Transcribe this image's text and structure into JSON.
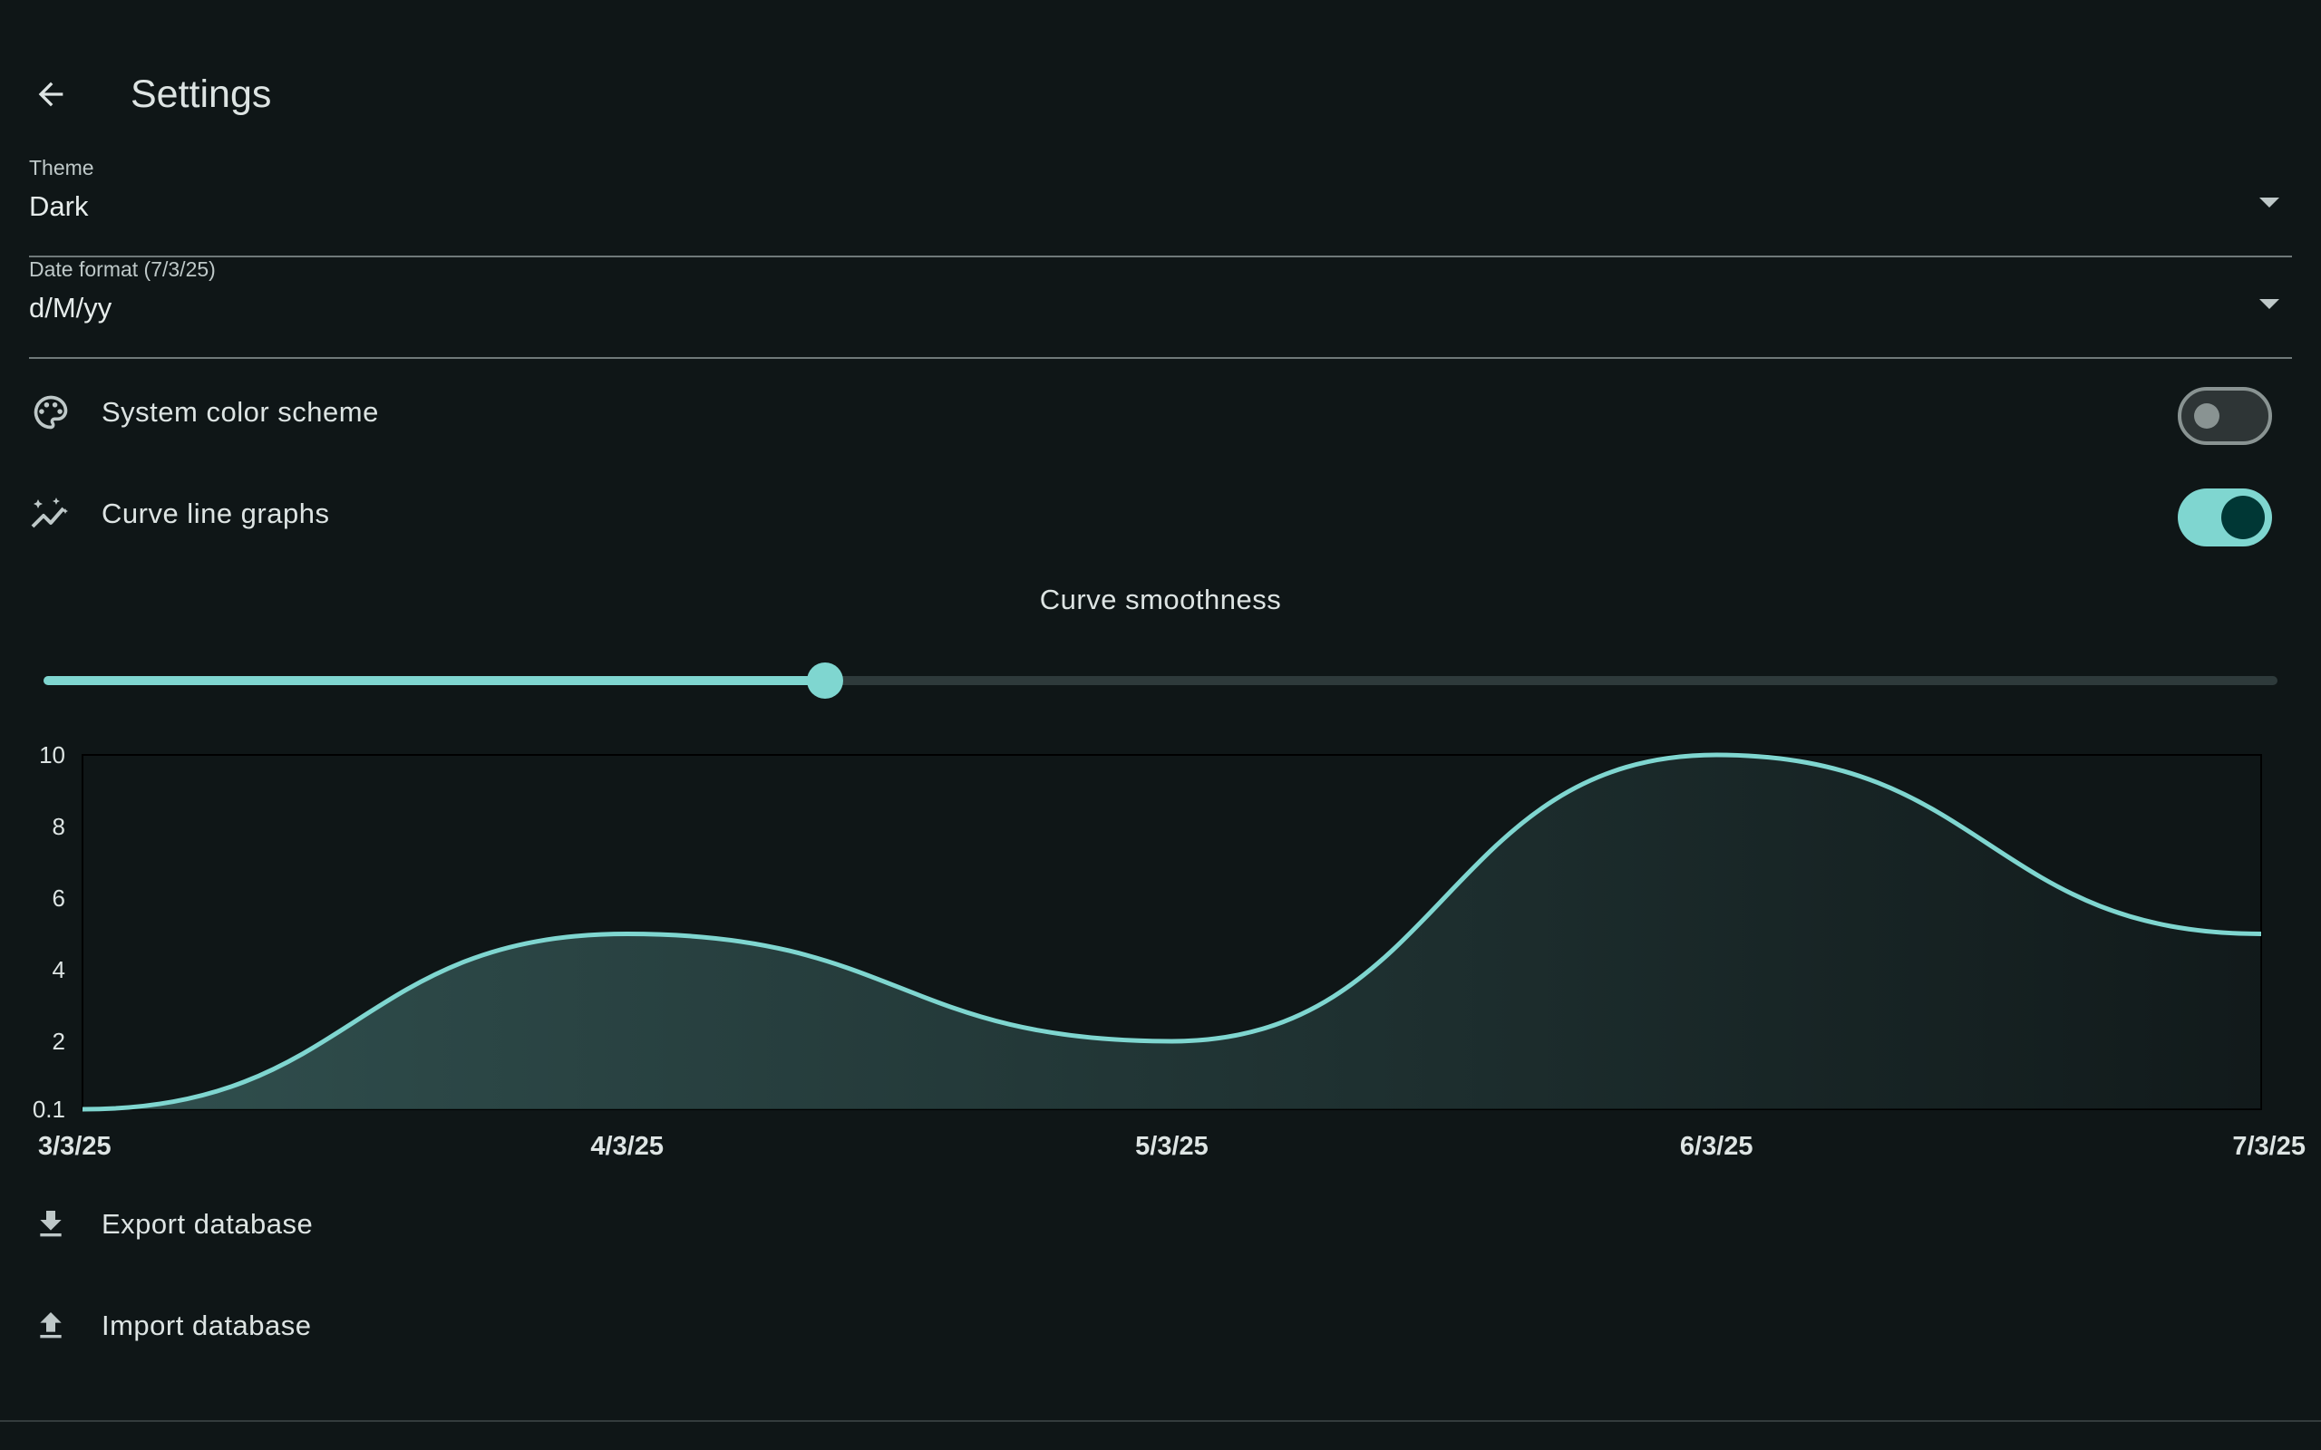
{
  "header": {
    "title": "Settings",
    "back_icon": "arrow-back-icon"
  },
  "theme": {
    "label": "Theme",
    "value": "Dark"
  },
  "date_format": {
    "label": "Date format (7/3/25)",
    "value": "d/M/yy"
  },
  "rows": {
    "system_color": {
      "label": "System color scheme",
      "icon": "palette-icon",
      "enabled": false
    },
    "curve_graphs": {
      "label": "Curve line graphs",
      "icon": "auto-graph-icon",
      "enabled": true
    }
  },
  "smoothness": {
    "label": "Curve smoothness",
    "value_fraction": 0.35
  },
  "chart_data": {
    "type": "line",
    "title": "",
    "x": [
      "3/3/25",
      "4/3/25",
      "5/3/25",
      "6/3/25",
      "7/3/25"
    ],
    "values": [
      0.1,
      5,
      2,
      10,
      5
    ],
    "y_ticks": [
      "0.1",
      "2",
      "4",
      "6",
      "8",
      "10"
    ],
    "ylim": [
      0.1,
      10
    ],
    "line_color": "#7fd6d0",
    "fill": "gradient"
  },
  "actions": {
    "export": {
      "label": "Export database",
      "icon": "download-icon"
    },
    "import": {
      "label": "Import database",
      "icon": "upload-icon"
    }
  },
  "colors": {
    "accent": "#7fd6d0",
    "background": "#0f1617"
  }
}
